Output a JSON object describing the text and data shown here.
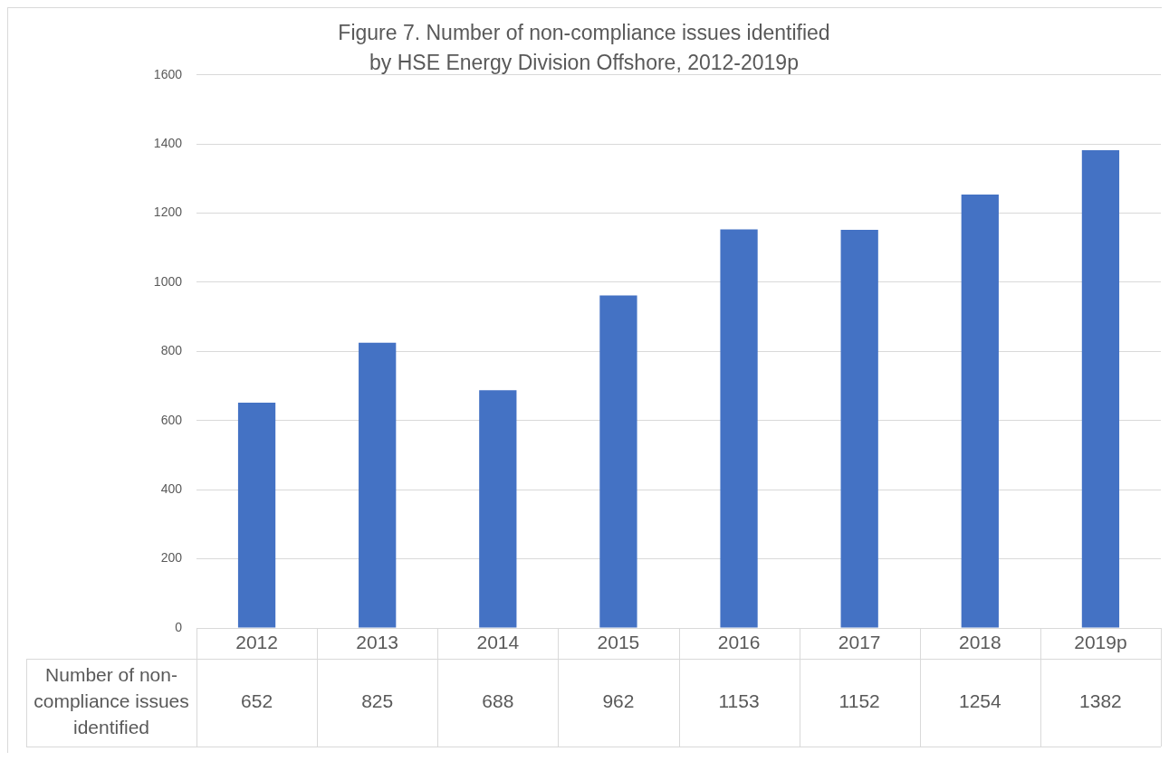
{
  "chart_data": {
    "type": "bar",
    "title": "Figure 7. Number of non-compliance issues identified\nby HSE Energy Division Offshore, 2012-2019p",
    "categories": [
      "2012",
      "2013",
      "2014",
      "2015",
      "2016",
      "2017",
      "2018",
      "2019p"
    ],
    "series": [
      {
        "name": "Number of non-compliance issues identified",
        "color": "#4472c4",
        "values": [
          652,
          825,
          688,
          962,
          1153,
          1152,
          1254,
          1382
        ]
      }
    ],
    "ylim": [
      0,
      1600
    ],
    "yticks": [
      0,
      200,
      400,
      600,
      800,
      1000,
      1200,
      1400,
      1600
    ],
    "grid": "y",
    "data_labels": true
  }
}
